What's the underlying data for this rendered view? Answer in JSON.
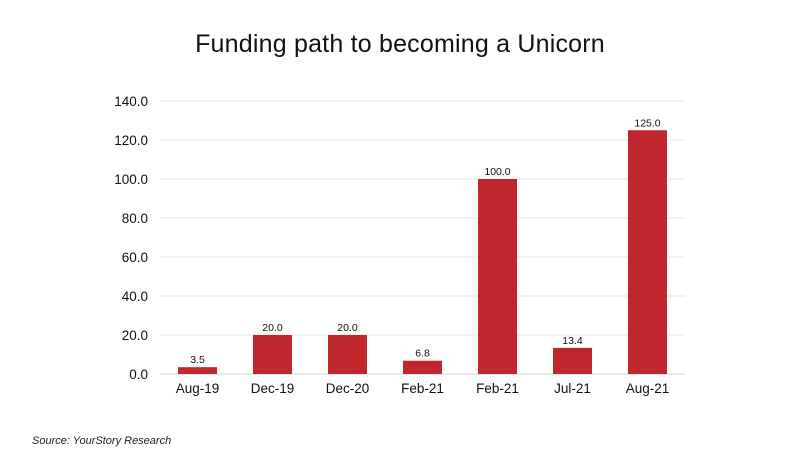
{
  "title": "Funding path to becoming a Unicorn",
  "source": "Source: YourStory Research",
  "chart_data": {
    "type": "bar",
    "title": "Funding path to becoming a Unicorn",
    "categories": [
      "Aug-19",
      "Dec-19",
      "Dec-20",
      "Feb-21",
      "Feb-21",
      "Jul-21",
      "Aug-21"
    ],
    "values": [
      3.5,
      20.0,
      20.0,
      6.8,
      100.0,
      13.4,
      125.0
    ],
    "value_labels": [
      "3.5",
      "20.0",
      "20.0",
      "6.8",
      "100.0",
      "13.4",
      "125.0"
    ],
    "ylim": [
      0,
      140
    ],
    "yticks": [
      0,
      20,
      40,
      60,
      80,
      100,
      120,
      140
    ],
    "ytick_labels": [
      "0.0",
      "20.0",
      "40.0",
      "60.0",
      "80.0",
      "100.0",
      "120.0",
      "140.0"
    ],
    "xlabel": "",
    "ylabel": "",
    "grid": true,
    "legend": "none",
    "bar_color": "#c0272d",
    "grid_color": "#e6e6e6"
  }
}
